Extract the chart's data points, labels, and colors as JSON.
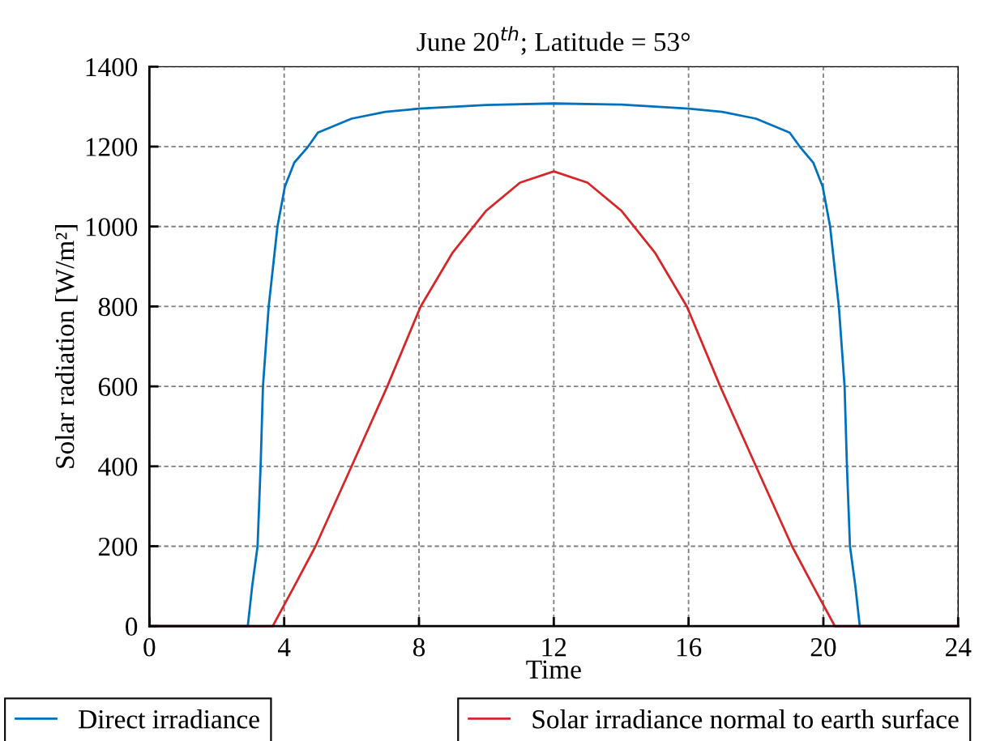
{
  "chart_data": {
    "type": "line",
    "title": "June 20$^{th}$; Latitude = 53°",
    "xlabel": "Time",
    "ylabel": "Solar radiation [W/m²]",
    "xlim": [
      0,
      24
    ],
    "xticks": [
      0,
      4,
      8,
      12,
      16,
      20,
      24
    ],
    "ylim": [
      0,
      1400
    ],
    "yticks": [
      0,
      200,
      400,
      600,
      800,
      1000,
      1200,
      1400
    ],
    "grid": true,
    "legend": "bottom",
    "line_style": "solid",
    "marker": "none",
    "series": [
      {
        "name": "Direct irradiance",
        "color": "#0072bd",
        "x": [
          0,
          2.8,
          2.92,
          3.05,
          3.21,
          3.3,
          3.37,
          3.54,
          3.8,
          4.02,
          4.3,
          4.71,
          5,
          6,
          7,
          8,
          10,
          12,
          14,
          16,
          17,
          18,
          19,
          19.3,
          19.7,
          19.98,
          20.2,
          20.46,
          20.63,
          20.7,
          20.79,
          20.95,
          21.08,
          21.2,
          24
        ],
        "values": [
          0,
          0,
          0,
          100,
          200,
          400,
          600,
          800,
          1000,
          1100,
          1160,
          1200,
          1235,
          1270,
          1287,
          1295,
          1304,
          1308,
          1305,
          1295,
          1287,
          1270,
          1235,
          1200,
          1160,
          1100,
          1000,
          800,
          600,
          400,
          200,
          100,
          0,
          0,
          0
        ]
      },
      {
        "name": "Solar irradiance normal to earth surface",
        "color": "#d62728",
        "x": [
          0,
          3.66,
          4.3,
          4.93,
          6.0,
          7.06,
          8.05,
          9,
          10,
          11,
          12,
          13,
          14,
          15,
          15.95,
          16.94,
          18.0,
          19.07,
          19.7,
          20.34,
          24
        ],
        "values": [
          0,
          0,
          100,
          200,
          400,
          600,
          800,
          935,
          1040,
          1110,
          1138,
          1110,
          1040,
          935,
          800,
          600,
          400,
          200,
          100,
          0,
          0
        ]
      }
    ]
  }
}
